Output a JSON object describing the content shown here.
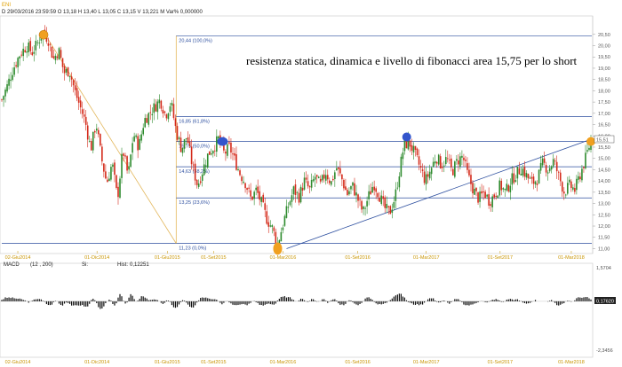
{
  "header": {
    "symbol": "ENI",
    "line": "D 29/03/2016   23:59:59  O 13,18  H 13,40  L 13,05  C 13,15  V 13,221 M  Var% 0,000000"
  },
  "annotation": "resistenza statica, dinamica e livello di fibonacci area 15,75 per lo short",
  "colors": {
    "up": "#2e8b2e",
    "down": "#d42a1a",
    "fib": "#2d4f9f",
    "trend": "#e3b75c",
    "marker_orange": "#f0a020",
    "marker_blue": "#3355cc"
  },
  "chart_data": [
    {
      "type": "candlestick",
      "ylim": [
        10.9,
        21.2
      ],
      "yticks": [
        "11,00",
        "11,50",
        "12,00",
        "12,50",
        "13,00",
        "13,50",
        "14,00",
        "14,50",
        "15,00",
        "15,50",
        "16,00",
        "16,50",
        "17,00",
        "17,50",
        "18,00",
        "18,50",
        "19,00",
        "19,50",
        "20,00",
        "20,50"
      ],
      "xticks": [
        "02-Giu2014",
        "01-Dic2014",
        "01-Giu2015",
        "01-Set2015",
        "01-Mar2016",
        "01-Set2016",
        "01-Mar2017",
        "01-Set2017",
        "01-Mar2018"
      ],
      "last_price_label": "15,51",
      "fibonacci_levels": [
        {
          "label": "20,44 (100,0%)",
          "value": 20.44
        },
        {
          "label": "16,85 (61,8%)",
          "value": 16.85
        },
        {
          "label": "15,75 (50,0%)",
          "value": 15.75
        },
        {
          "label": "14,63 (38,2%)",
          "value": 14.63
        },
        {
          "label": "13,25 (23,6%)",
          "value": 13.25
        },
        {
          "label": "11,23 (0,0%)",
          "value": 11.23
        }
      ],
      "price_path": [
        {
          "x": 0,
          "v": 17.6
        },
        {
          "x": 6,
          "v": 18.2
        },
        {
          "x": 12,
          "v": 18.9
        },
        {
          "x": 20,
          "v": 19.6
        },
        {
          "x": 28,
          "v": 20.0
        },
        {
          "x": 34,
          "v": 19.7
        },
        {
          "x": 40,
          "v": 20.1
        },
        {
          "x": 46,
          "v": 20.6
        },
        {
          "x": 52,
          "v": 20.3
        },
        {
          "x": 58,
          "v": 19.4
        },
        {
          "x": 64,
          "v": 19.8
        },
        {
          "x": 70,
          "v": 18.8
        },
        {
          "x": 76,
          "v": 18.9
        },
        {
          "x": 82,
          "v": 18.0
        },
        {
          "x": 88,
          "v": 17.3
        },
        {
          "x": 94,
          "v": 16.6
        },
        {
          "x": 100,
          "v": 15.4
        },
        {
          "x": 106,
          "v": 16.6
        },
        {
          "x": 112,
          "v": 15.0
        },
        {
          "x": 118,
          "v": 13.9
        },
        {
          "x": 124,
          "v": 14.8
        },
        {
          "x": 130,
          "v": 13.2
        },
        {
          "x": 136,
          "v": 15.4
        },
        {
          "x": 142,
          "v": 14.2
        },
        {
          "x": 148,
          "v": 16.1
        },
        {
          "x": 154,
          "v": 15.5
        },
        {
          "x": 160,
          "v": 16.7
        },
        {
          "x": 166,
          "v": 17.0
        },
        {
          "x": 172,
          "v": 17.3
        },
        {
          "x": 178,
          "v": 17.6
        },
        {
          "x": 184,
          "v": 16.9
        },
        {
          "x": 190,
          "v": 17.5
        },
        {
          "x": 196,
          "v": 16.2
        },
        {
          "x": 202,
          "v": 15.4
        },
        {
          "x": 208,
          "v": 16.0
        },
        {
          "x": 214,
          "v": 14.7
        },
        {
          "x": 220,
          "v": 13.8
        },
        {
          "x": 226,
          "v": 14.5
        },
        {
          "x": 232,
          "v": 15.2
        },
        {
          "x": 238,
          "v": 15.5
        },
        {
          "x": 244,
          "v": 15.9
        },
        {
          "x": 250,
          "v": 15.2
        },
        {
          "x": 256,
          "v": 15.5
        },
        {
          "x": 262,
          "v": 14.9
        },
        {
          "x": 268,
          "v": 14.3
        },
        {
          "x": 274,
          "v": 13.9
        },
        {
          "x": 280,
          "v": 13.2
        },
        {
          "x": 286,
          "v": 13.6
        },
        {
          "x": 292,
          "v": 13.0
        },
        {
          "x": 298,
          "v": 12.3
        },
        {
          "x": 304,
          "v": 11.9
        },
        {
          "x": 310,
          "v": 11.2
        },
        {
          "x": 316,
          "v": 12.1
        },
        {
          "x": 322,
          "v": 12.9
        },
        {
          "x": 328,
          "v": 13.6
        },
        {
          "x": 334,
          "v": 13.3
        },
        {
          "x": 340,
          "v": 14.0
        },
        {
          "x": 346,
          "v": 13.6
        },
        {
          "x": 352,
          "v": 14.2
        },
        {
          "x": 358,
          "v": 13.8
        },
        {
          "x": 364,
          "v": 14.4
        },
        {
          "x": 370,
          "v": 13.9
        },
        {
          "x": 376,
          "v": 14.6
        },
        {
          "x": 382,
          "v": 14.1
        },
        {
          "x": 388,
          "v": 13.4
        },
        {
          "x": 394,
          "v": 13.8
        },
        {
          "x": 400,
          "v": 13.2
        },
        {
          "x": 406,
          "v": 12.6
        },
        {
          "x": 412,
          "v": 13.3
        },
        {
          "x": 418,
          "v": 13.9
        },
        {
          "x": 424,
          "v": 13.4
        },
        {
          "x": 430,
          "v": 12.8
        },
        {
          "x": 436,
          "v": 12.6
        },
        {
          "x": 442,
          "v": 13.3
        },
        {
          "x": 448,
          "v": 14.7
        },
        {
          "x": 452,
          "v": 15.6
        },
        {
          "x": 458,
          "v": 15.7
        },
        {
          "x": 464,
          "v": 15.2
        },
        {
          "x": 470,
          "v": 14.6
        },
        {
          "x": 476,
          "v": 14.0
        },
        {
          "x": 482,
          "v": 14.5
        },
        {
          "x": 488,
          "v": 15.1
        },
        {
          "x": 494,
          "v": 14.7
        },
        {
          "x": 500,
          "v": 15.0
        },
        {
          "x": 506,
          "v": 14.4
        },
        {
          "x": 512,
          "v": 14.9
        },
        {
          "x": 518,
          "v": 15.1
        },
        {
          "x": 524,
          "v": 14.2
        },
        {
          "x": 530,
          "v": 13.6
        },
        {
          "x": 536,
          "v": 13.2
        },
        {
          "x": 542,
          "v": 13.5
        },
        {
          "x": 548,
          "v": 13.1
        },
        {
          "x": 554,
          "v": 13.4
        },
        {
          "x": 560,
          "v": 13.8
        },
        {
          "x": 566,
          "v": 13.5
        },
        {
          "x": 572,
          "v": 14.0
        },
        {
          "x": 578,
          "v": 14.3
        },
        {
          "x": 584,
          "v": 14.6
        },
        {
          "x": 590,
          "v": 14.2
        },
        {
          "x": 596,
          "v": 13.9
        },
        {
          "x": 602,
          "v": 14.1
        },
        {
          "x": 608,
          "v": 14.8
        },
        {
          "x": 614,
          "v": 14.5
        },
        {
          "x": 620,
          "v": 14.9
        },
        {
          "x": 626,
          "v": 14.2
        },
        {
          "x": 632,
          "v": 13.5
        },
        {
          "x": 638,
          "v": 13.8
        },
        {
          "x": 644,
          "v": 13.6
        },
        {
          "x": 650,
          "v": 14.3
        },
        {
          "x": 656,
          "v": 15.0
        },
        {
          "x": 662,
          "v": 15.8
        }
      ]
    },
    {
      "type": "bar",
      "name": "MACD",
      "params": "(12 , 200)",
      "sig_label": "Si:",
      "hist_label": "Hist:",
      "value": "0,12251",
      "ylim": [
        -2.3456,
        1.5704
      ],
      "yticks": [
        "1,5704",
        "-2,3456"
      ],
      "last_label": "0,17620"
    }
  ]
}
